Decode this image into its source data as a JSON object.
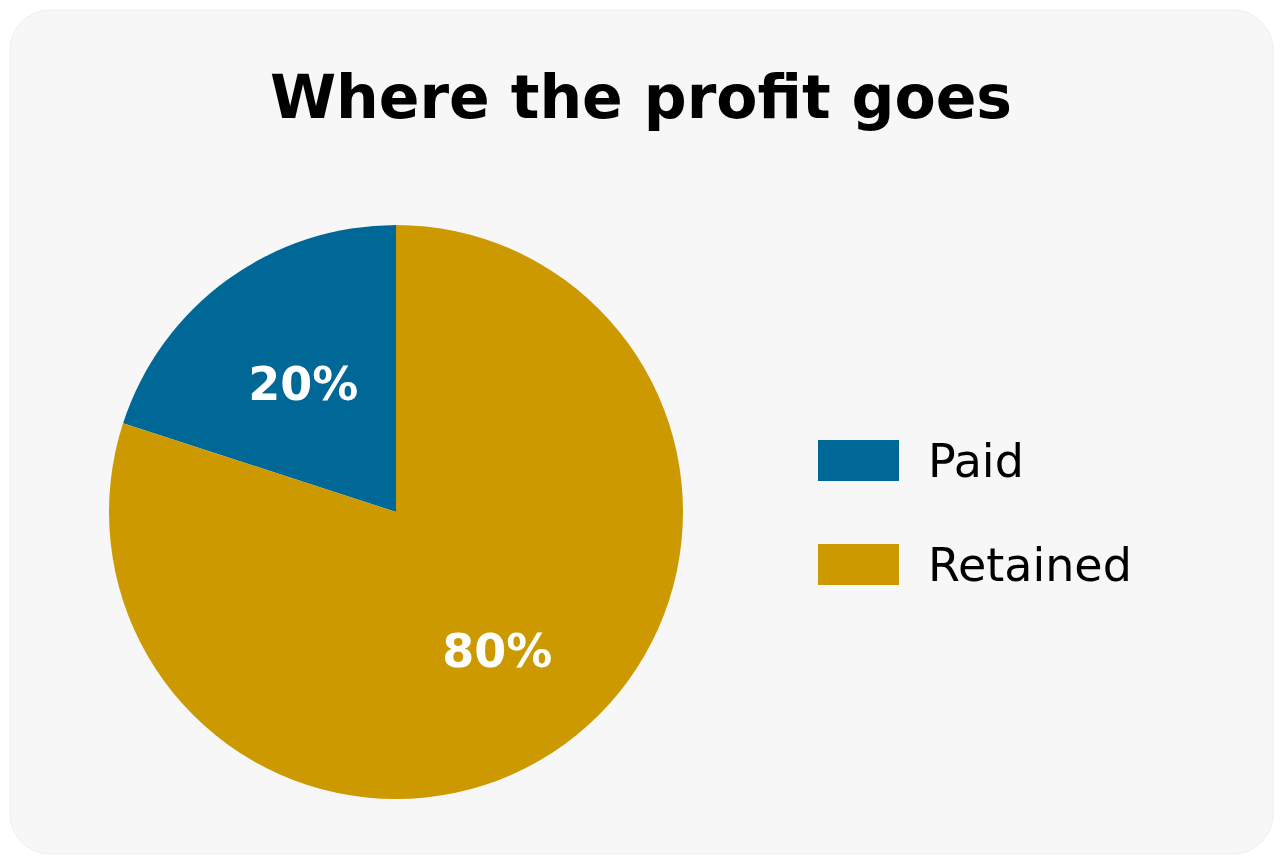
{
  "chart_data": {
    "type": "pie",
    "title": "Where the profit goes",
    "categories": [
      "Paid",
      "Retained"
    ],
    "values": [
      20,
      80
    ],
    "colors": [
      "#006896",
      "#cc9a00"
    ],
    "value_labels": [
      "20%",
      "80%"
    ],
    "legend": "right"
  }
}
